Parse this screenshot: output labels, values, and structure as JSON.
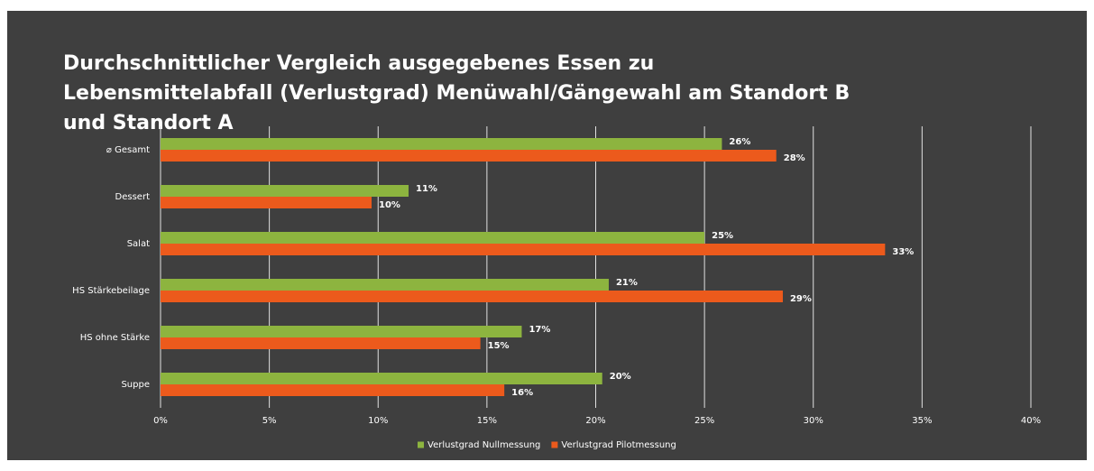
{
  "chart_data": {
    "type": "hbar",
    "title": "Durchschnittlicher Vergleich ausgegebenes Essen zu Lebensmittelabfall (Verlustgrad) Menüwahl/Gängewahl am Standort B und Standort A",
    "categories": [
      "⌀ Gesamt",
      "Dessert",
      "Salat",
      "HS Stärkebeilage",
      "HS ohne Stärke",
      "Suppe"
    ],
    "series": [
      {
        "name": "Verlustgrad Nullmessung",
        "color": "#8db43f",
        "values": [
          25.8,
          11.4,
          25.0,
          20.6,
          16.6,
          20.3
        ],
        "value_labels": [
          "26%",
          "11%",
          "25%",
          "21%",
          "17%",
          "20%"
        ]
      },
      {
        "name": "Verlustgrad Pilotmessung",
        "color": "#ec5a1c",
        "values": [
          28.3,
          9.7,
          33.3,
          28.6,
          14.7,
          15.8
        ],
        "value_labels": [
          "28%",
          "10%",
          "33%",
          "29%",
          "15%",
          "16%"
        ]
      }
    ],
    "xlim": [
      0,
      40
    ],
    "xticks": [
      {
        "value": 0,
        "label": "0%"
      },
      {
        "value": 5,
        "label": "5%"
      },
      {
        "value": 10,
        "label": "10%"
      },
      {
        "value": 15,
        "label": "15%"
      },
      {
        "value": 20,
        "label": "20%"
      },
      {
        "value": 25,
        "label": "25%"
      },
      {
        "value": 30,
        "label": "30%"
      },
      {
        "value": 35,
        "label": "35%"
      },
      {
        "value": 40,
        "label": "40%"
      }
    ],
    "grid": true,
    "legend": "bottom"
  }
}
